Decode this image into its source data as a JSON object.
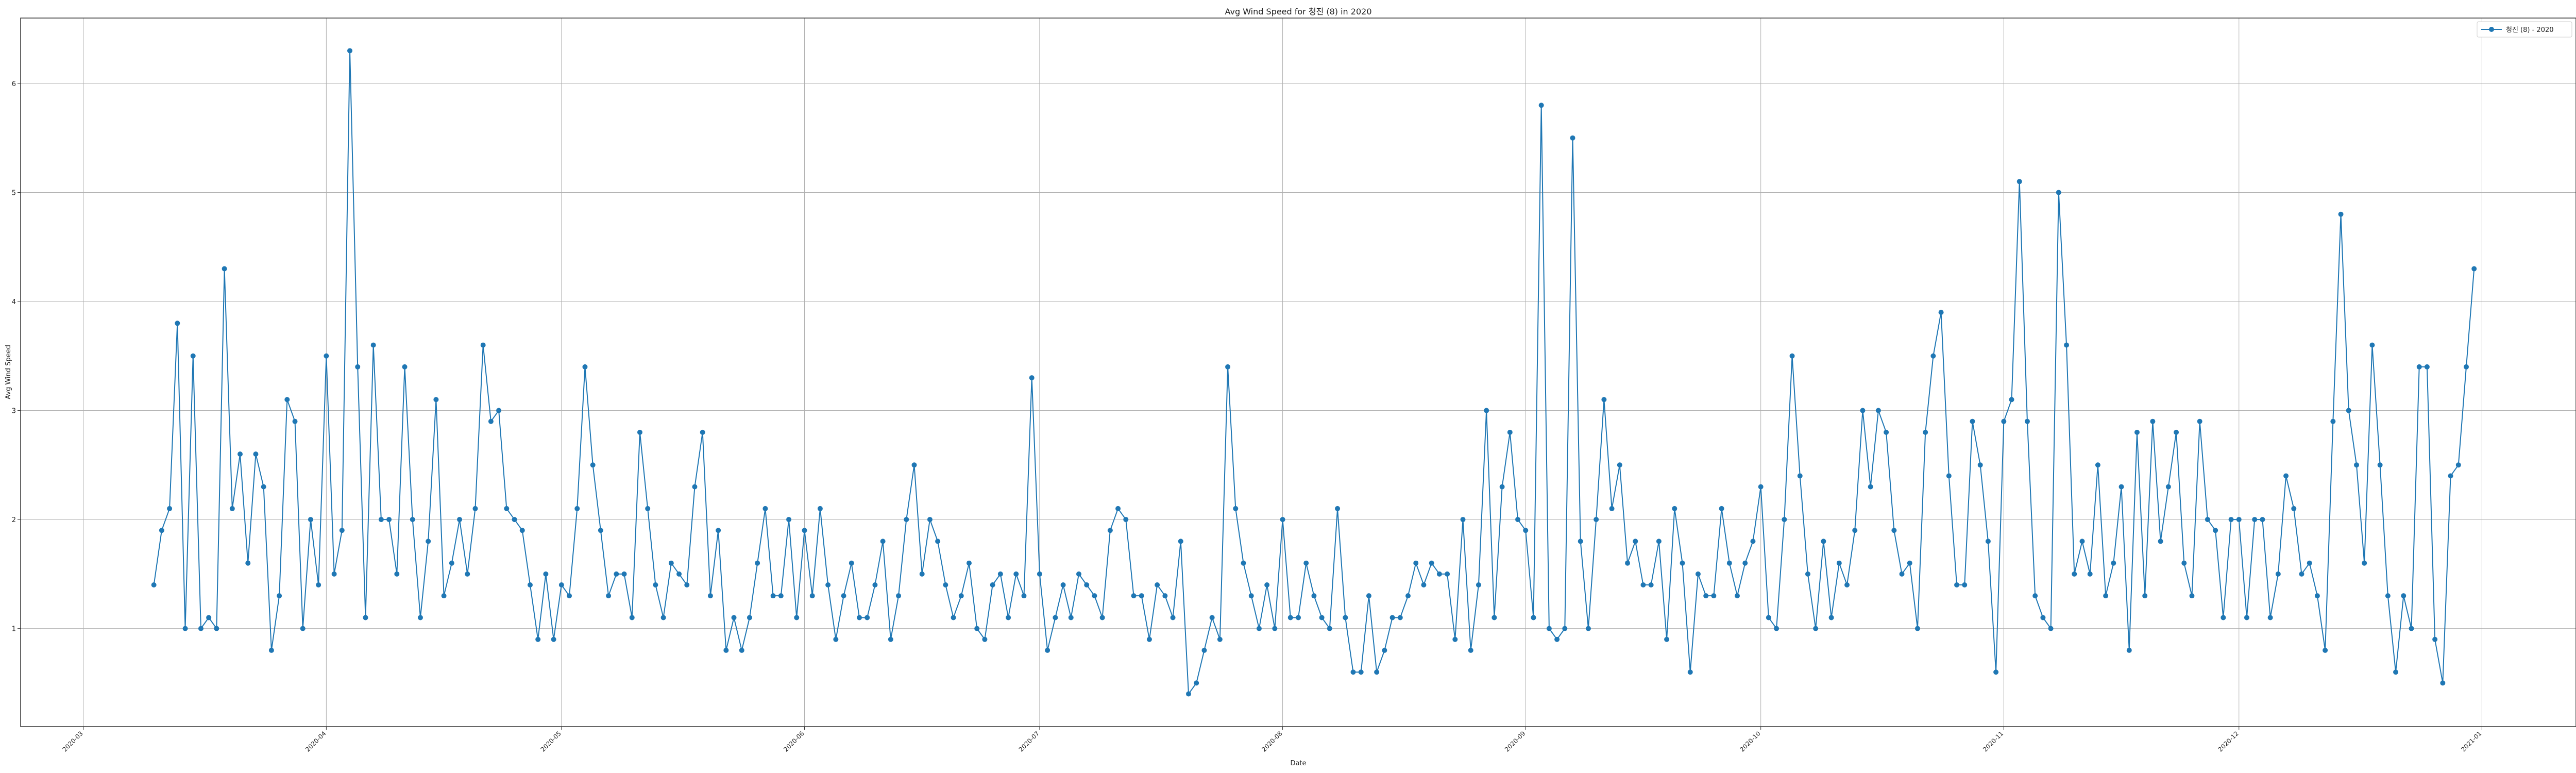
{
  "chart_data": {
    "type": "line",
    "title": "Avg Wind Speed for 청진 (8) in 2020",
    "xlabel": "Date",
    "ylabel": "Avg Wind Speed",
    "grid": true,
    "legend_position": "top-right",
    "x_start": "2020-03-10",
    "xlim": [
      "2020-02-22",
      "2021-01-13"
    ],
    "ylim": [
      0.1,
      6.6
    ],
    "x_ticks": [
      "2020-03",
      "2020-04",
      "2020-05",
      "2020-06",
      "2020-07",
      "2020-08",
      "2020-09",
      "2020-10",
      "2020-11",
      "2020-12",
      "2021-01"
    ],
    "y_ticks": [
      1,
      2,
      3,
      4,
      5,
      6
    ],
    "series": [
      {
        "name": "청진 (8) - 2020",
        "color": "#1f77b4",
        "marker": "circle",
        "values": [
          1.4,
          1.9,
          2.1,
          3.8,
          1.0,
          3.5,
          1.0,
          1.1,
          1.0,
          4.3,
          2.1,
          2.6,
          1.6,
          2.6,
          2.3,
          0.8,
          1.3,
          3.1,
          2.9,
          1.0,
          2.0,
          1.4,
          3.5,
          1.5,
          1.9,
          6.3,
          3.4,
          1.1,
          3.6,
          2.0,
          2.0,
          1.5,
          3.4,
          2.0,
          1.1,
          1.8,
          3.1,
          1.3,
          1.6,
          2.0,
          1.5,
          2.1,
          3.6,
          2.9,
          3.0,
          2.1,
          2.0,
          1.9,
          1.4,
          0.9,
          1.5,
          0.9,
          1.4,
          1.3,
          2.1,
          3.4,
          2.5,
          1.9,
          1.3,
          1.5,
          1.5,
          1.1,
          2.8,
          2.1,
          1.4,
          1.1,
          1.6,
          1.5,
          1.4,
          2.3,
          2.8,
          1.3,
          1.9,
          0.8,
          1.1,
          0.8,
          1.1,
          1.6,
          2.1,
          1.3,
          1.3,
          2.0,
          1.1,
          1.9,
          1.3,
          2.1,
          1.4,
          0.9,
          1.3,
          1.6,
          1.1,
          1.1,
          1.4,
          1.8,
          0.9,
          1.3,
          2.0,
          2.5,
          1.5,
          2.0,
          1.8,
          1.4,
          1.1,
          1.3,
          1.6,
          1.0,
          0.9,
          1.4,
          1.5,
          1.1,
          1.5,
          1.3,
          3.3,
          1.5,
          0.8,
          1.1,
          1.4,
          1.1,
          1.5,
          1.4,
          1.3,
          1.1,
          1.9,
          2.1,
          2.0,
          1.3,
          1.3,
          0.9,
          1.4,
          1.3,
          1.1,
          1.8,
          0.4,
          0.5,
          0.8,
          1.1,
          0.9,
          3.4,
          2.1,
          1.6,
          1.3,
          1.0,
          1.4,
          1.0,
          2.0,
          1.1,
          1.1,
          1.6,
          1.3,
          1.1,
          1.0,
          2.1,
          1.1,
          0.6,
          0.6,
          1.3,
          0.6,
          0.8,
          1.1,
          1.1,
          1.3,
          1.6,
          1.4,
          1.6,
          1.5,
          1.5,
          0.9,
          2.0,
          0.8,
          1.4,
          3.0,
          1.1,
          2.3,
          2.8,
          2.0,
          1.9,
          1.1,
          5.8,
          1.0,
          0.9,
          1.0,
          5.5,
          1.8,
          1.0,
          2.0,
          3.1,
          2.1,
          2.5,
          1.6,
          1.8,
          1.4,
          1.4,
          1.8,
          0.9,
          2.1,
          1.6,
          0.6,
          1.5,
          1.3,
          1.3,
          2.1,
          1.6,
          1.3,
          1.6,
          1.8,
          2.3,
          1.1,
          1.0,
          2.0,
          3.5,
          2.4,
          1.5,
          1.0,
          1.8,
          1.1,
          1.6,
          1.4,
          1.9,
          3.0,
          2.3,
          3.0,
          2.8,
          1.9,
          1.5,
          1.6,
          1.0,
          2.8,
          3.5,
          3.9,
          2.4,
          1.4,
          1.4,
          2.9,
          2.5,
          1.8,
          0.6,
          2.9,
          3.1,
          5.1,
          2.9,
          1.3,
          1.1,
          1.0,
          5.0,
          3.6,
          1.5,
          1.8,
          1.5,
          2.5,
          1.3,
          1.6,
          2.3,
          0.8,
          2.8,
          1.3,
          2.9,
          1.8,
          2.3,
          2.8,
          1.6,
          1.3,
          2.9,
          2.0,
          1.9,
          1.1,
          2.0,
          2.0,
          1.1,
          2.0,
          2.0,
          1.1,
          1.5,
          2.4,
          2.1,
          1.5,
          1.6,
          1.3,
          0.8,
          2.9,
          4.8,
          3.0,
          2.5,
          1.6,
          3.6,
          2.5,
          1.3,
          0.6,
          1.3,
          1.0,
          3.4,
          3.4,
          0.9,
          0.5,
          2.4,
          2.5,
          3.4,
          4.3
        ]
      }
    ]
  }
}
